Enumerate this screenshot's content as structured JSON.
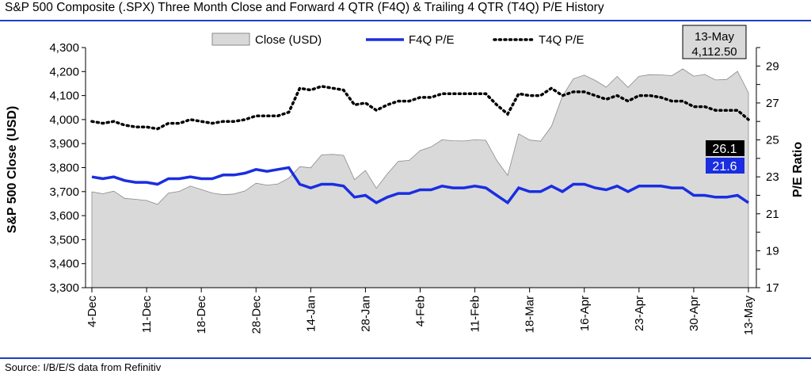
{
  "title": "S&P 500 Composite (.SPX) Three Month Close and Forward 4 QTR (F4Q) & Trailing 4 QTR (T4Q) P/E History",
  "source": "Source: I/B/E/S data from Refinitiv",
  "callouts": {
    "date": "13-May",
    "close": "4,112.50",
    "t4q": "26.1",
    "f4q": "21.6"
  },
  "chart_data": {
    "type": "area",
    "xlabel": "",
    "ylabel_left": "S&P 500 Close (USD)",
    "ylabel_right": "P/E Ratio",
    "ylim_left": [
      3300,
      4300
    ],
    "ylim_right": [
      17,
      30
    ],
    "yticks_left": [
      "3,300",
      "3,400",
      "3,500",
      "3,600",
      "3,700",
      "3,800",
      "3,900",
      "4,000",
      "4,100",
      "4,200",
      "4,300"
    ],
    "yticks_right": [
      "17",
      "19",
      "21",
      "23",
      "25",
      "27",
      "29"
    ],
    "xticks": [
      "4-Dec",
      "11-Dec",
      "18-Dec",
      "28-Dec",
      "14-Jan",
      "28-Jan",
      "4-Feb",
      "11-Feb",
      "18-Mar",
      "16-Apr",
      "23-Apr",
      "30-Apr",
      "13-May"
    ],
    "legend": [
      "Close (USD)",
      "F4Q P/E",
      "T4Q P/E"
    ],
    "legend_placement": "top",
    "grid": false,
    "series": [
      {
        "name": "Close (USD)",
        "axis": "left",
        "color": "#d9d9d9",
        "values": [
          3699,
          3691,
          3702,
          3672,
          3668,
          3663,
          3647,
          3694,
          3701,
          3723,
          3709,
          3694,
          3687,
          3690,
          3703,
          3735,
          3727,
          3732,
          3756,
          3804,
          3799,
          3853,
          3855,
          3851,
          3750,
          3788,
          3714,
          3774,
          3826,
          3830,
          3871,
          3886,
          3916,
          3912,
          3911,
          3916,
          3914,
          3830,
          3768,
          3941,
          3915,
          3910,
          3972,
          4097,
          4170,
          4185,
          4163,
          4135,
          4180,
          4134,
          4180,
          4187,
          4186,
          4183,
          4211,
          4181,
          4188,
          4165,
          4167,
          4201,
          4112
        ]
      },
      {
        "name": "F4Q P/E",
        "axis": "right",
        "color": "#1a2ee0",
        "values": [
          23.0,
          22.9,
          23.0,
          22.8,
          22.7,
          22.7,
          22.6,
          22.9,
          22.9,
          23.0,
          22.9,
          22.9,
          23.1,
          23.1,
          23.2,
          23.4,
          23.3,
          23.4,
          23.5,
          22.6,
          22.4,
          22.6,
          22.6,
          22.5,
          21.9,
          22.0,
          21.6,
          21.9,
          22.1,
          22.1,
          22.3,
          22.3,
          22.5,
          22.4,
          22.4,
          22.5,
          22.4,
          22.0,
          21.6,
          22.4,
          22.2,
          22.2,
          22.5,
          22.2,
          22.6,
          22.6,
          22.4,
          22.3,
          22.5,
          22.2,
          22.5,
          22.5,
          22.5,
          22.4,
          22.4,
          22.0,
          22.0,
          21.9,
          21.9,
          22.0,
          21.6
        ]
      },
      {
        "name": "T4Q P/E",
        "axis": "right",
        "color": "#000000",
        "values": [
          26.0,
          25.9,
          26.0,
          25.8,
          25.7,
          25.7,
          25.6,
          25.9,
          25.9,
          26.1,
          26.0,
          25.9,
          26.0,
          26.0,
          26.1,
          26.3,
          26.3,
          26.3,
          26.5,
          27.8,
          27.7,
          27.9,
          27.8,
          27.7,
          26.9,
          27.0,
          26.6,
          26.9,
          27.1,
          27.1,
          27.3,
          27.3,
          27.5,
          27.5,
          27.5,
          27.5,
          27.5,
          26.9,
          26.4,
          27.5,
          27.4,
          27.4,
          27.8,
          27.4,
          27.6,
          27.6,
          27.4,
          27.2,
          27.4,
          27.1,
          27.4,
          27.4,
          27.3,
          27.1,
          27.1,
          26.8,
          26.8,
          26.6,
          26.6,
          26.6,
          26.1
        ]
      }
    ]
  }
}
